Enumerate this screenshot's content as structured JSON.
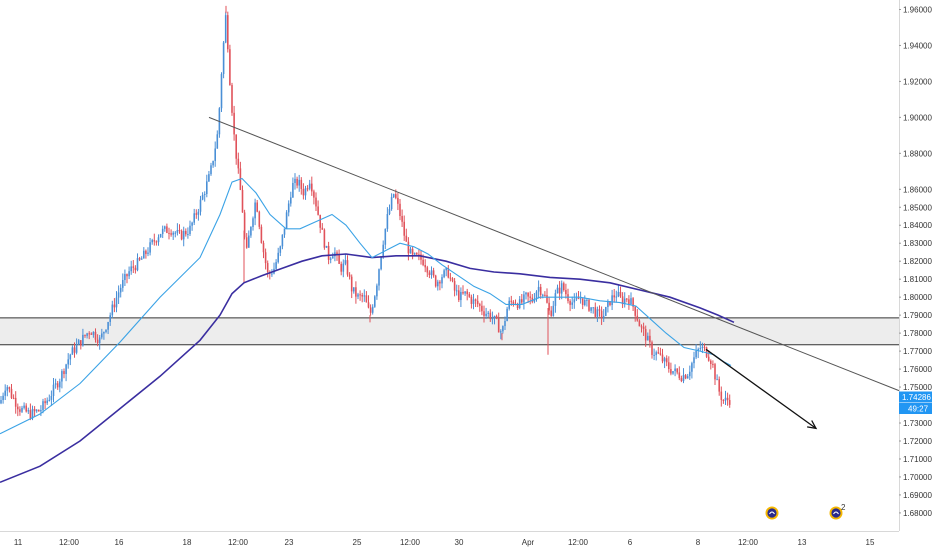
{
  "chart_data": {
    "type": "candlestick",
    "symbol_price_badge": "1.74286",
    "countdown_badge": "49:27",
    "colors": {
      "up": "#4a8fd6",
      "down": "#e0525a",
      "ema_fast": "#3ba3e6",
      "ema_slow": "#3a2ea0",
      "trendline": "#555555",
      "zone_fill": "#ededed",
      "zone_border": "#333333",
      "arrow": "#111111",
      "badge_bg": "#2196f3",
      "axis_text": "#333333"
    },
    "y_axis": {
      "range": [
        1.675,
        1.962
      ],
      "ticks": [
        "1.96000",
        "1.94000",
        "1.92000",
        "1.90000",
        "1.88000",
        "1.86000",
        "1.85000",
        "1.84000",
        "1.83000",
        "1.82000",
        "1.81000",
        "1.80000",
        "1.79000",
        "1.78000",
        "1.77000",
        "1.76000",
        "1.75000",
        "1.73000",
        "1.72000",
        "1.71000",
        "1.70000",
        "1.69000",
        "1.68000"
      ]
    },
    "x_axis": {
      "range": [
        0,
        899
      ],
      "ticks": [
        {
          "label": "11",
          "x": 18
        },
        {
          "label": "12:00",
          "x": 69
        },
        {
          "label": "16",
          "x": 119
        },
        {
          "label": "18",
          "x": 187
        },
        {
          "label": "12:00",
          "x": 238
        },
        {
          "label": "23",
          "x": 289
        },
        {
          "label": "25",
          "x": 357
        },
        {
          "label": "12:00",
          "x": 410
        },
        {
          "label": "30",
          "x": 459
        },
        {
          "label": "Apr",
          "x": 528
        },
        {
          "label": "12:00",
          "x": 578
        },
        {
          "label": "6",
          "x": 630
        },
        {
          "label": "8",
          "x": 698
        },
        {
          "label": "12:00",
          "x": 748
        },
        {
          "label": "13",
          "x": 802
        },
        {
          "label": "15",
          "x": 870
        }
      ]
    },
    "price_anchors": [
      [
        0,
        1.741
      ],
      [
        6,
        1.752
      ],
      [
        12,
        1.745
      ],
      [
        20,
        1.738
      ],
      [
        30,
        1.735
      ],
      [
        40,
        1.737
      ],
      [
        50,
        1.745
      ],
      [
        60,
        1.755
      ],
      [
        70,
        1.768
      ],
      [
        80,
        1.775
      ],
      [
        90,
        1.782
      ],
      [
        100,
        1.776
      ],
      [
        110,
        1.79
      ],
      [
        120,
        1.805
      ],
      [
        130,
        1.815
      ],
      [
        140,
        1.82
      ],
      [
        150,
        1.828
      ],
      [
        160,
        1.836
      ],
      [
        170,
        1.838
      ],
      [
        180,
        1.834
      ],
      [
        190,
        1.838
      ],
      [
        200,
        1.852
      ],
      [
        210,
        1.868
      ],
      [
        218,
        1.892
      ],
      [
        222,
        1.93
      ],
      [
        226,
        1.958
      ],
      [
        230,
        1.92
      ],
      [
        234,
        1.89
      ],
      [
        238,
        1.87
      ],
      [
        242,
        1.852
      ],
      [
        246,
        1.822
      ],
      [
        250,
        1.838
      ],
      [
        256,
        1.855
      ],
      [
        262,
        1.83
      ],
      [
        268,
        1.812
      ],
      [
        274,
        1.816
      ],
      [
        280,
        1.826
      ],
      [
        286,
        1.844
      ],
      [
        292,
        1.862
      ],
      [
        298,
        1.864
      ],
      [
        304,
        1.858
      ],
      [
        310,
        1.866
      ],
      [
        316,
        1.852
      ],
      [
        322,
        1.836
      ],
      [
        328,
        1.822
      ],
      [
        334,
        1.826
      ],
      [
        340,
        1.816
      ],
      [
        346,
        1.818
      ],
      [
        352,
        1.804
      ],
      [
        358,
        1.8
      ],
      [
        364,
        1.8
      ],
      [
        370,
        1.79
      ],
      [
        376,
        1.805
      ],
      [
        382,
        1.828
      ],
      [
        388,
        1.846
      ],
      [
        394,
        1.858
      ],
      [
        400,
        1.846
      ],
      [
        406,
        1.83
      ],
      [
        412,
        1.822
      ],
      [
        418,
        1.822
      ],
      [
        424,
        1.82
      ],
      [
        430,
        1.814
      ],
      [
        436,
        1.808
      ],
      [
        442,
        1.812
      ],
      [
        448,
        1.814
      ],
      [
        454,
        1.804
      ],
      [
        460,
        1.8
      ],
      [
        466,
        1.802
      ],
      [
        472,
        1.798
      ],
      [
        478,
        1.796
      ],
      [
        484,
        1.792
      ],
      [
        490,
        1.79
      ],
      [
        496,
        1.786
      ],
      [
        502,
        1.78
      ],
      [
        508,
        1.796
      ],
      [
        514,
        1.798
      ],
      [
        520,
        1.796
      ],
      [
        526,
        1.8
      ],
      [
        532,
        1.798
      ],
      [
        538,
        1.806
      ],
      [
        544,
        1.802
      ],
      [
        550,
        1.79
      ],
      [
        556,
        1.802
      ],
      [
        562,
        1.806
      ],
      [
        568,
        1.8
      ],
      [
        574,
        1.796
      ],
      [
        580,
        1.8
      ],
      [
        586,
        1.796
      ],
      [
        592,
        1.794
      ],
      [
        598,
        1.79
      ],
      [
        604,
        1.79
      ],
      [
        610,
        1.798
      ],
      [
        616,
        1.802
      ],
      [
        622,
        1.798
      ],
      [
        628,
        1.8
      ],
      [
        634,
        1.794
      ],
      [
        640,
        1.784
      ],
      [
        646,
        1.778
      ],
      [
        652,
        1.77
      ],
      [
        658,
        1.768
      ],
      [
        664,
        1.764
      ],
      [
        670,
        1.76
      ],
      [
        676,
        1.758
      ],
      [
        682,
        1.756
      ],
      [
        688,
        1.758
      ],
      [
        694,
        1.766
      ],
      [
        700,
        1.772
      ],
      [
        706,
        1.77
      ],
      [
        712,
        1.764
      ],
      [
        716,
        1.754
      ],
      [
        720,
        1.746
      ],
      [
        724,
        1.742
      ],
      [
        728,
        1.743
      ],
      [
        731,
        1.743
      ]
    ],
    "spikes": [
      {
        "x": 226,
        "high": 1.962
      },
      {
        "x": 548,
        "low": 1.768
      },
      {
        "x": 502,
        "low": 1.776
      },
      {
        "x": 370,
        "low": 1.786
      },
      {
        "x": 244,
        "low": 1.808
      }
    ],
    "ema_fast_anchors": [
      [
        0,
        1.724
      ],
      [
        40,
        1.735
      ],
      [
        80,
        1.752
      ],
      [
        120,
        1.775
      ],
      [
        160,
        1.8
      ],
      [
        200,
        1.822
      ],
      [
        220,
        1.846
      ],
      [
        232,
        1.864
      ],
      [
        242,
        1.866
      ],
      [
        256,
        1.858
      ],
      [
        270,
        1.846
      ],
      [
        286,
        1.838
      ],
      [
        300,
        1.838
      ],
      [
        316,
        1.842
      ],
      [
        332,
        1.846
      ],
      [
        346,
        1.84
      ],
      [
        360,
        1.83
      ],
      [
        372,
        1.822
      ],
      [
        386,
        1.826
      ],
      [
        400,
        1.83
      ],
      [
        414,
        1.828
      ],
      [
        428,
        1.824
      ],
      [
        442,
        1.818
      ],
      [
        458,
        1.812
      ],
      [
        474,
        1.806
      ],
      [
        490,
        1.802
      ],
      [
        506,
        1.796
      ],
      [
        522,
        1.796
      ],
      [
        540,
        1.8
      ],
      [
        560,
        1.8
      ],
      [
        580,
        1.8
      ],
      [
        600,
        1.798
      ],
      [
        620,
        1.797
      ],
      [
        636,
        1.795
      ],
      [
        650,
        1.788
      ],
      [
        666,
        1.78
      ],
      [
        684,
        1.772
      ],
      [
        700,
        1.77
      ],
      [
        714,
        1.768
      ],
      [
        724,
        1.764
      ],
      [
        731,
        1.762
      ]
    ],
    "ema_slow_anchors": [
      [
        0,
        1.697
      ],
      [
        40,
        1.706
      ],
      [
        80,
        1.72
      ],
      [
        120,
        1.738
      ],
      [
        160,
        1.756
      ],
      [
        200,
        1.776
      ],
      [
        220,
        1.79
      ],
      [
        232,
        1.802
      ],
      [
        244,
        1.808
      ],
      [
        262,
        1.812
      ],
      [
        282,
        1.816
      ],
      [
        302,
        1.82
      ],
      [
        322,
        1.823
      ],
      [
        346,
        1.824
      ],
      [
        372,
        1.822
      ],
      [
        396,
        1.823
      ],
      [
        420,
        1.823
      ],
      [
        446,
        1.82
      ],
      [
        470,
        1.816
      ],
      [
        494,
        1.814
      ],
      [
        520,
        1.813
      ],
      [
        550,
        1.811
      ],
      [
        580,
        1.81
      ],
      [
        610,
        1.808
      ],
      [
        640,
        1.804
      ],
      [
        670,
        1.8
      ],
      [
        700,
        1.794
      ],
      [
        718,
        1.79
      ],
      [
        734,
        1.786
      ]
    ],
    "trendline": {
      "from": [
        209,
        1.9
      ],
      "to": [
        899,
        1.748
      ]
    },
    "zone": {
      "top": 1.7885,
      "bottom": 1.7735
    },
    "arrow": {
      "from": [
        706,
        1.771
      ],
      "to": [
        816,
        1.727
      ]
    },
    "event_icons": [
      {
        "x": 772,
        "y": 1.6805,
        "badge": ""
      },
      {
        "x": 836,
        "y": 1.6805,
        "badge": "2"
      }
    ]
  }
}
